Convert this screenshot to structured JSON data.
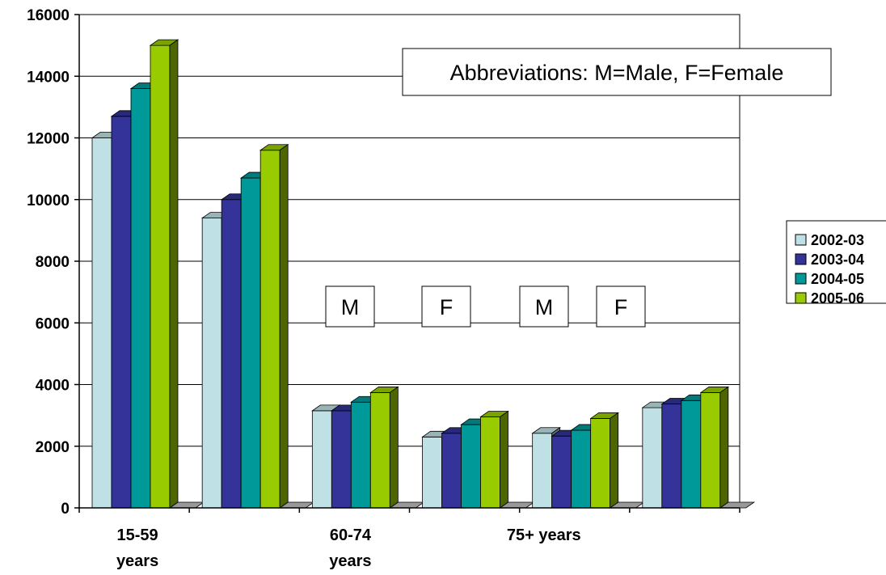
{
  "chart_data": {
    "type": "bar",
    "categories": [
      "15-59 years",
      "",
      "60-74 years",
      "",
      "75+ years",
      ""
    ],
    "category_labels": [
      [
        "15-59",
        "years"
      ],
      [],
      [
        "60-74",
        "years"
      ],
      [],
      [
        "75+ years"
      ],
      []
    ],
    "series": [
      {
        "name": "2002-03",
        "color": "#bfe1e5",
        "values": [
          12000,
          9400,
          3150,
          2300,
          2420,
          3250
        ]
      },
      {
        "name": "2003-04",
        "color": "#333399",
        "values": [
          12700,
          10000,
          3150,
          2420,
          2330,
          3370
        ]
      },
      {
        "name": "2004-05",
        "color": "#009999",
        "values": [
          13600,
          10700,
          3430,
          2700,
          2520,
          3480
        ]
      },
      {
        "name": "2005-06",
        "color": "#99cc00",
        "values": [
          15000,
          11600,
          3740,
          2950,
          2900,
          3740
        ]
      }
    ],
    "ylim": [
      0,
      16000
    ],
    "yticks": [
      0,
      2000,
      4000,
      6000,
      8000,
      10000,
      12000,
      14000,
      16000
    ],
    "grid": true,
    "legend_position": "right",
    "annotations": [
      "Abbreviations: M=Male, F=Female",
      "M",
      "F",
      "M",
      "F"
    ],
    "title": "",
    "xlabel": "",
    "ylabel": ""
  }
}
